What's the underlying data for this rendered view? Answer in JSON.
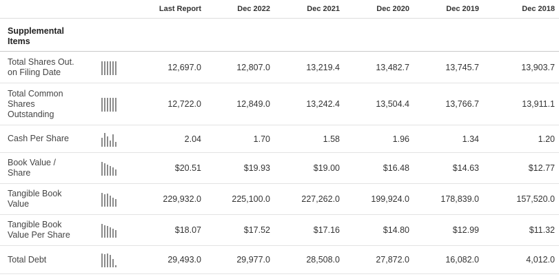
{
  "header": {
    "columns": [
      "Last Report",
      "Dec 2022",
      "Dec 2021",
      "Dec 2020",
      "Dec 2019",
      "Dec 2018"
    ]
  },
  "section": {
    "title_line1": "Supplemental",
    "title_line2": "Items"
  },
  "rows": [
    {
      "label_lines": [
        "Total Shares Out.",
        "on Filing Date"
      ],
      "sparkline": [
        0.95,
        0.95,
        0.95,
        0.95,
        0.95,
        0.95
      ],
      "values": [
        "12,697.0",
        "12,807.0",
        "13,219.4",
        "13,482.7",
        "13,745.7",
        "13,903.7"
      ]
    },
    {
      "label_lines": [
        "Total Common",
        "Shares",
        "Outstanding"
      ],
      "sparkline": [
        0.95,
        0.95,
        0.95,
        0.95,
        0.95,
        0.95
      ],
      "values": [
        "12,722.0",
        "12,849.0",
        "13,242.4",
        "13,504.4",
        "13,766.7",
        "13,911.1"
      ]
    },
    {
      "label_lines": [
        "Cash Per Share"
      ],
      "sparkline": [
        0.6,
        0.95,
        0.7,
        0.45,
        0.85,
        0.35
      ],
      "values": [
        "2.04",
        "1.70",
        "1.58",
        "1.96",
        "1.34",
        "1.20"
      ]
    },
    {
      "label_lines": [
        "Book Value /",
        "Share"
      ],
      "sparkline": [
        0.95,
        0.85,
        0.75,
        0.65,
        0.55,
        0.45
      ],
      "values": [
        "$20.51",
        "$19.93",
        "$19.00",
        "$16.48",
        "$14.63",
        "$12.77"
      ]
    },
    {
      "label_lines": [
        "Tangible Book",
        "Value"
      ],
      "sparkline": [
        0.95,
        0.85,
        0.9,
        0.75,
        0.6,
        0.5
      ],
      "values": [
        "229,932.0",
        "225,100.0",
        "227,262.0",
        "199,924.0",
        "178,839.0",
        "157,520.0"
      ]
    },
    {
      "label_lines": [
        "Tangible Book",
        "Value Per Share"
      ],
      "sparkline": [
        0.95,
        0.85,
        0.8,
        0.7,
        0.6,
        0.5
      ],
      "values": [
        "$18.07",
        "$17.52",
        "$17.16",
        "$14.80",
        "$12.99",
        "$11.32"
      ]
    },
    {
      "label_lines": [
        "Total Debt"
      ],
      "sparkline": [
        0.95,
        0.9,
        0.95,
        0.85,
        0.55,
        0.15
      ],
      "values": [
        "29,493.0",
        "29,977.0",
        "28,508.0",
        "27,872.0",
        "16,082.0",
        "4,012.0"
      ]
    }
  ],
  "colors": {
    "sparkline": "#8a8a8a",
    "border": "#e3e3e3"
  }
}
